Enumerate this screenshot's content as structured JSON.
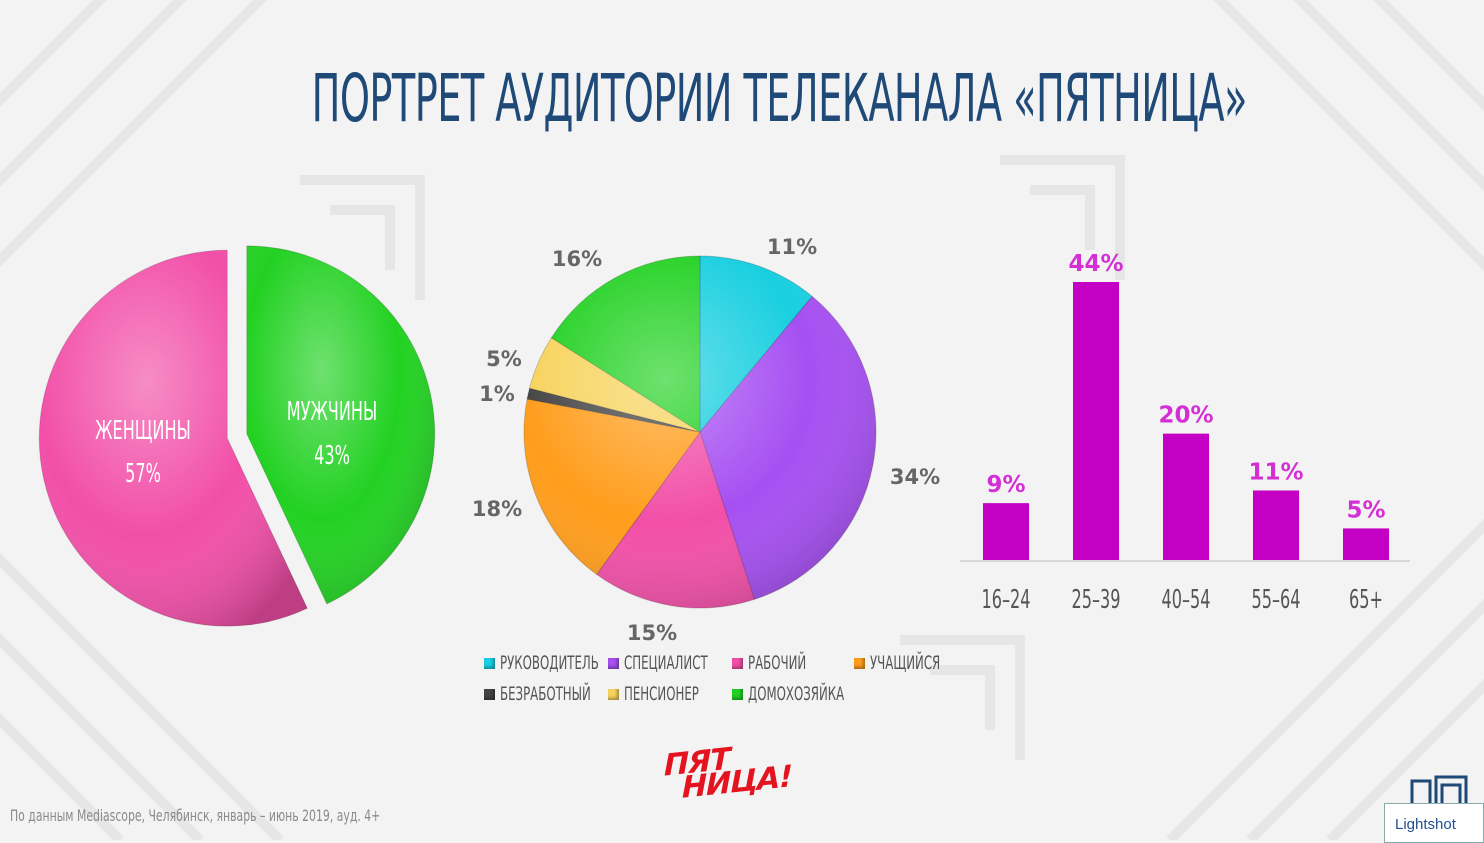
{
  "title": "ПОРТРЕТ АУДИТОРИИ ТЕЛЕКАНАЛА «ПЯТНИЦА»",
  "footnote": "По данным Mediascope, Челябинск, январь – июнь 2019, ауд. 4+",
  "logo": {
    "line1": "ПЯТ",
    "line2": "НИЦА!"
  },
  "lightshot_label": "Lightshot",
  "colors": {
    "title": "#1f4a78",
    "women": "#f24fa8",
    "men": "#22d122",
    "age_bar": "#c400c4",
    "age_label": "#d42fd4",
    "occupation_label": "#666666"
  },
  "chart_data": [
    {
      "type": "pie",
      "title": "",
      "slices": [
        {
          "label": "ЖЕНЩИНЫ",
          "value": 57,
          "value_label": "57%",
          "color": "#f24fa8"
        },
        {
          "label": "МУЖЧИНЫ",
          "value": 43,
          "value_label": "43%",
          "color": "#22d122"
        }
      ]
    },
    {
      "type": "pie",
      "title": "",
      "slices": [
        {
          "label": "РУКОВОДИТЕЛЬ",
          "value": 11,
          "value_label": "11%",
          "color": "#19cfe0"
        },
        {
          "label": "СПЕЦИАЛИСТ",
          "value": 34,
          "value_label": "34%",
          "color": "#a64ff2"
        },
        {
          "label": "РАБОЧИЙ",
          "value": 15,
          "value_label": "15%",
          "color": "#f24fa8"
        },
        {
          "label": "УЧАЩИЙСЯ",
          "value": 18,
          "value_label": "18%",
          "color": "#ff9d1c"
        },
        {
          "label": "БЕЗРАБОТНЫЙ",
          "value": 1,
          "value_label": "1%",
          "color": "#444444"
        },
        {
          "label": "ПЕНСИОНЕР",
          "value": 5,
          "value_label": "5%",
          "color": "#f7d35c"
        },
        {
          "label": "ДОМОХОЗЯЙКА",
          "value": 16,
          "value_label": "16%",
          "color": "#22d122"
        }
      ]
    },
    {
      "type": "bar",
      "title": "",
      "categories": [
        "16–24",
        "25–39",
        "40–54",
        "55–64",
        "65+"
      ],
      "values": [
        9,
        44,
        20,
        11,
        5
      ],
      "value_labels": [
        "9%",
        "44%",
        "20%",
        "11%",
        "5%"
      ],
      "ylim": [
        0,
        44
      ],
      "grid": false
    }
  ]
}
